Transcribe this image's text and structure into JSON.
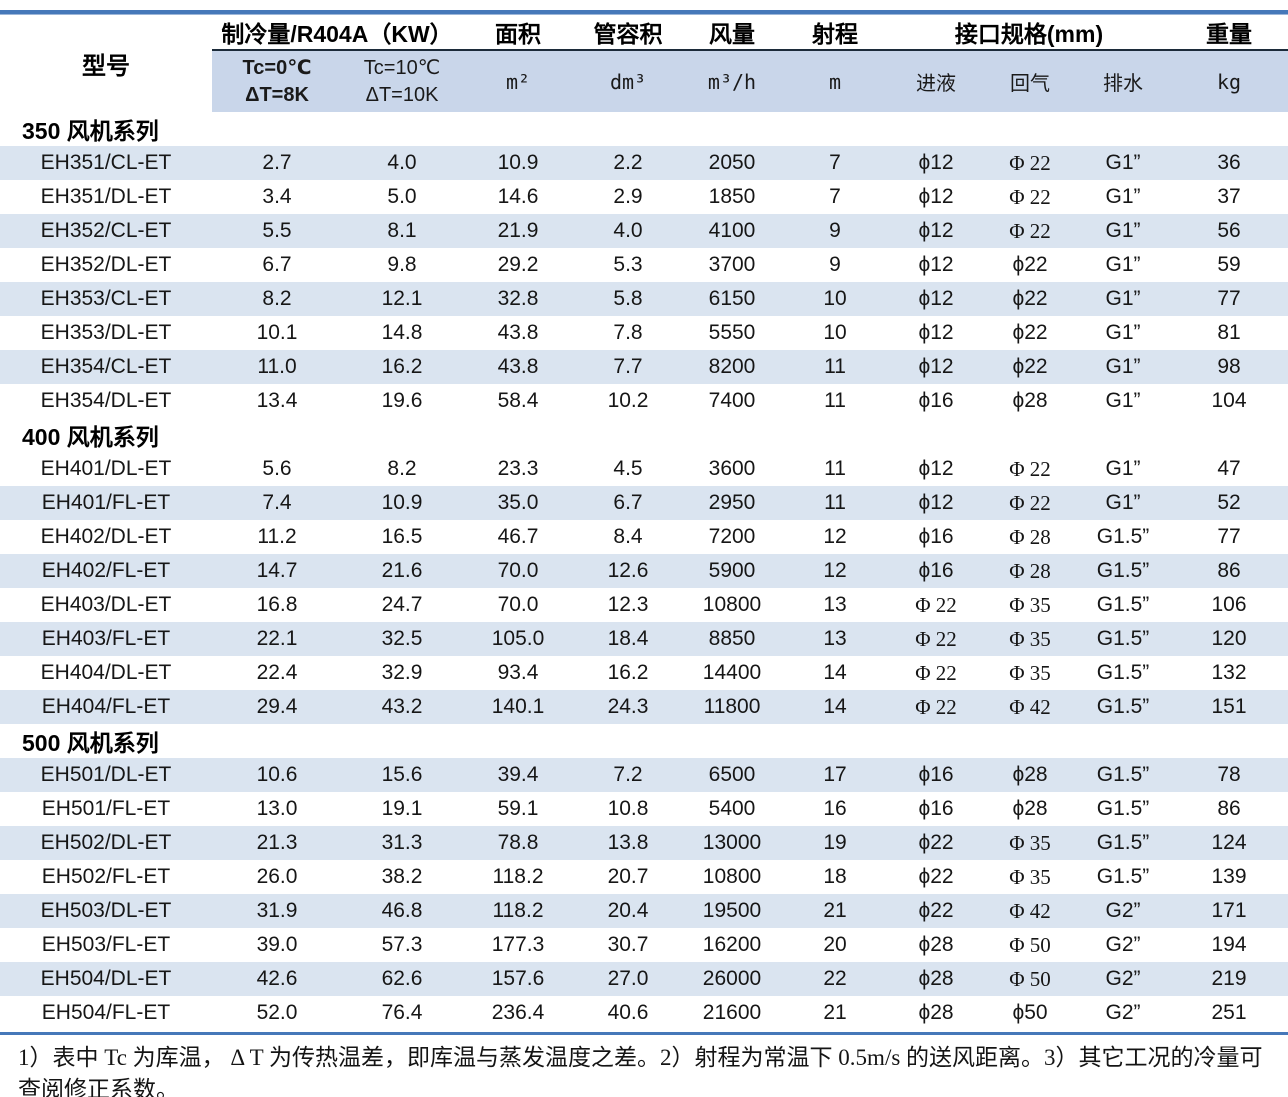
{
  "colors": {
    "accent": "#4678b9",
    "stripe": "#dae4f0",
    "subheader": "#c9d6ea",
    "header_line": "#1c2b3a",
    "blue_number": "#4d6f9d"
  },
  "table": {
    "header": {
      "model": "型号",
      "cooling_group": "制冷量/R404A（KW）",
      "tc0_line1": "Tc=0℃",
      "tc0_line2": "ΔT=8K",
      "tc10_line1": "Tc=10℃",
      "tc10_line2": "ΔT=10K",
      "area": "面积",
      "area_unit": "m²",
      "volume": "管容积",
      "volume_unit": "dm³",
      "airflow": "风量",
      "airflow_unit": "m³/h",
      "range": "射程",
      "range_unit": "m",
      "interface_group": "接口规格(mm)",
      "liquid": "进液",
      "gas": "回气",
      "drain": "排水",
      "weight": "重量",
      "weight_unit": "kg"
    },
    "sections": [
      {
        "title": "350 风机系列",
        "first_row_shaded": true,
        "rows": [
          {
            "model": "EH351/CL-ET",
            "tc0": "2.7",
            "tc10": "4.0",
            "area": "10.9",
            "volume": "2.2",
            "volume_blue": true,
            "airflow": "2050",
            "range": "7",
            "liquid": "ϕ12",
            "gas": "Φ 22",
            "drain": "G1”",
            "weight": "36"
          },
          {
            "model": "EH351/DL-ET",
            "tc0": "3.4",
            "tc10": "5.0",
            "area": "14.6",
            "volume": "2.9",
            "volume_blue": true,
            "airflow": "1850",
            "range": "7",
            "liquid": "ϕ12",
            "gas": "Φ 22",
            "drain": "G1”",
            "weight": "37"
          },
          {
            "model": "EH352/CL-ET",
            "tc0": "5.5",
            "tc10": "8.1",
            "area": "21.9",
            "volume": "4.0",
            "volume_blue": true,
            "airflow": "4100",
            "range": "9",
            "liquid": "ϕ12",
            "gas": "Φ 22",
            "drain": "G1”",
            "weight": "56"
          },
          {
            "model": "EH352/DL-ET",
            "tc0": "6.7",
            "tc10": "9.8",
            "area": "29.2",
            "volume": "5.3",
            "volume_blue": true,
            "airflow": "3700",
            "range": "9",
            "liquid": "ϕ12",
            "gas": "ϕ22",
            "drain": "G1”",
            "weight": "59"
          },
          {
            "model": "EH353/CL-ET",
            "tc0": "8.2",
            "tc10": "12.1",
            "area": "32.8",
            "volume": "5.8",
            "volume_blue": true,
            "airflow": "6150",
            "range": "10",
            "liquid": "ϕ12",
            "gas": "ϕ22",
            "drain": "G1”",
            "weight": "77"
          },
          {
            "model": "EH353/DL-ET",
            "tc0": "10.1",
            "tc10": "14.8",
            "area": "43.8",
            "volume": "7.8",
            "volume_blue": true,
            "airflow": "5550",
            "range": "10",
            "liquid": "ϕ12",
            "gas": "ϕ22",
            "drain": "G1”",
            "weight": "81"
          },
          {
            "model": "EH354/CL-ET",
            "tc0": "11.0",
            "tc10": "16.2",
            "area": "43.8",
            "volume": "7.7",
            "volume_blue": true,
            "airflow": "8200",
            "range": "11",
            "liquid": "ϕ12",
            "gas": "ϕ22",
            "drain": "G1”",
            "weight": "98"
          },
          {
            "model": "EH354/DL-ET",
            "tc0": "13.4",
            "tc10": "19.6",
            "area": "58.4",
            "volume": "10.2",
            "volume_blue": true,
            "airflow": "7400",
            "range": "11",
            "liquid": "ϕ16",
            "gas": "ϕ28",
            "drain": "G1”",
            "weight": "104"
          }
        ]
      },
      {
        "title": "400 风机系列",
        "first_row_shaded": false,
        "rows": [
          {
            "model": "EH401/DL-ET",
            "tc0": "5.6",
            "tc10": "8.2",
            "area": "23.3",
            "volume": "4.5",
            "volume_blue": false,
            "airflow": "3600",
            "range": "11",
            "liquid": "ϕ12",
            "gas": "Φ 22",
            "drain": "G1”",
            "weight": "47"
          },
          {
            "model": "EH401/FL-ET",
            "tc0": "7.4",
            "tc10": "10.9",
            "area": "35.0",
            "volume": "6.7",
            "volume_blue": false,
            "airflow": "2950",
            "range": "11",
            "liquid": "ϕ12",
            "gas": "Φ 22",
            "drain": "G1”",
            "weight": "52"
          },
          {
            "model": "EH402/DL-ET",
            "tc0": "11.2",
            "tc10": "16.5",
            "area": "46.7",
            "volume": "8.4",
            "volume_blue": false,
            "airflow": "7200",
            "range": "12",
            "liquid": "ϕ16",
            "gas": "Φ 28",
            "drain": "G1.5”",
            "weight": "77"
          },
          {
            "model": "EH402/FL-ET",
            "tc0": "14.7",
            "tc10": "21.6",
            "area": "70.0",
            "volume": "12.6",
            "volume_blue": false,
            "airflow": "5900",
            "range": "12",
            "liquid": "ϕ16",
            "gas": "Φ 28",
            "drain": "G1.5”",
            "weight": "86"
          },
          {
            "model": "EH403/DL-ET",
            "tc0": "16.8",
            "tc10": "24.7",
            "area": "70.0",
            "volume": "12.3",
            "volume_blue": false,
            "airflow": "10800",
            "range": "13",
            "liquid": "Φ 22",
            "gas": "Φ 35",
            "drain": "G1.5”",
            "weight": "106"
          },
          {
            "model": "EH403/FL-ET",
            "tc0": "22.1",
            "tc10": "32.5",
            "area": "105.0",
            "volume": "18.4",
            "volume_blue": false,
            "airflow": "8850",
            "range": "13",
            "liquid": "Φ 22",
            "gas": "Φ 35",
            "drain": "G1.5”",
            "weight": "120"
          },
          {
            "model": "EH404/DL-ET",
            "tc0": "22.4",
            "tc10": "32.9",
            "area": "93.4",
            "volume": "16.2",
            "volume_blue": false,
            "airflow": "14400",
            "range": "14",
            "liquid": "Φ 22",
            "gas": "Φ 35",
            "drain": "G1.5”",
            "weight": "132"
          },
          {
            "model": "EH404/FL-ET",
            "tc0": "29.4",
            "tc10": "43.2",
            "area": "140.1",
            "volume": "24.3",
            "volume_blue": false,
            "airflow": "11800",
            "range": "14",
            "liquid": "Φ 22",
            "gas": "Φ 42",
            "drain": "G1.5”",
            "weight": "151"
          }
        ]
      },
      {
        "title": "500 风机系列",
        "first_row_shaded": true,
        "rows": [
          {
            "model": "EH501/DL-ET",
            "tc0": "10.6",
            "tc10": "15.6",
            "area": "39.4",
            "volume": "7.2",
            "volume_blue": false,
            "airflow": "6500",
            "range": "17",
            "liquid": "ϕ16",
            "gas": "ϕ28",
            "drain": "G1.5”",
            "weight": "78"
          },
          {
            "model": "EH501/FL-ET",
            "tc0": "13.0",
            "tc10": "19.1",
            "area": "59.1",
            "volume": "10.8",
            "volume_blue": false,
            "airflow": "5400",
            "range": "16",
            "liquid": "ϕ16",
            "gas": "ϕ28",
            "drain": "G1.5”",
            "weight": "86"
          },
          {
            "model": "EH502/DL-ET",
            "tc0": "21.3",
            "tc10": "31.3",
            "area": "78.8",
            "volume": "13.8",
            "volume_blue": false,
            "airflow": "13000",
            "range": "19",
            "liquid": "ϕ22",
            "gas": "Φ 35",
            "drain": "G1.5”",
            "weight": "124"
          },
          {
            "model": "EH502/FL-ET",
            "tc0": "26.0",
            "tc10": "38.2",
            "area": "118.2",
            "volume": "20.7",
            "volume_blue": false,
            "airflow": "10800",
            "range": "18",
            "liquid": "ϕ22",
            "gas": "Φ 35",
            "drain": "G1.5”",
            "weight": "139"
          },
          {
            "model": "EH503/DL-ET",
            "tc0": "31.9",
            "tc10": "46.8",
            "area": "118.2",
            "volume": "20.4",
            "volume_blue": false,
            "airflow": "19500",
            "range": "21",
            "liquid": "ϕ22",
            "gas": "Φ 42",
            "drain": "G2”",
            "weight": "171"
          },
          {
            "model": "EH503/FL-ET",
            "tc0": "39.0",
            "tc10": "57.3",
            "area": "177.3",
            "volume": "30.7",
            "volume_blue": false,
            "airflow": "16200",
            "range": "20",
            "liquid": "ϕ28",
            "gas": "Φ 50",
            "drain": "G2”",
            "weight": "194"
          },
          {
            "model": "EH504/DL-ET",
            "tc0": "42.6",
            "tc10": "62.6",
            "area": "157.6",
            "volume": "27.0",
            "volume_blue": false,
            "airflow": "26000",
            "range": "22",
            "liquid": "ϕ28",
            "gas": "Φ 50",
            "drain": "G2”",
            "weight": "219"
          },
          {
            "model": "EH504/FL-ET",
            "tc0": "52.0",
            "tc10": "76.4",
            "area": "236.4",
            "volume": "40.6",
            "volume_blue": false,
            "airflow": "21600",
            "range": "21",
            "liquid": "ϕ28",
            "gas": "ϕ50",
            "drain": "G2”",
            "weight": "251"
          }
        ]
      }
    ]
  },
  "footnote": "1）表中 Tc 为库温， Δ T 为传热温差，即库温与蒸发温度之差。2）射程为常温下 0.5m/s 的送风距离。3）其它工况的冷量可查阅修正系数。"
}
